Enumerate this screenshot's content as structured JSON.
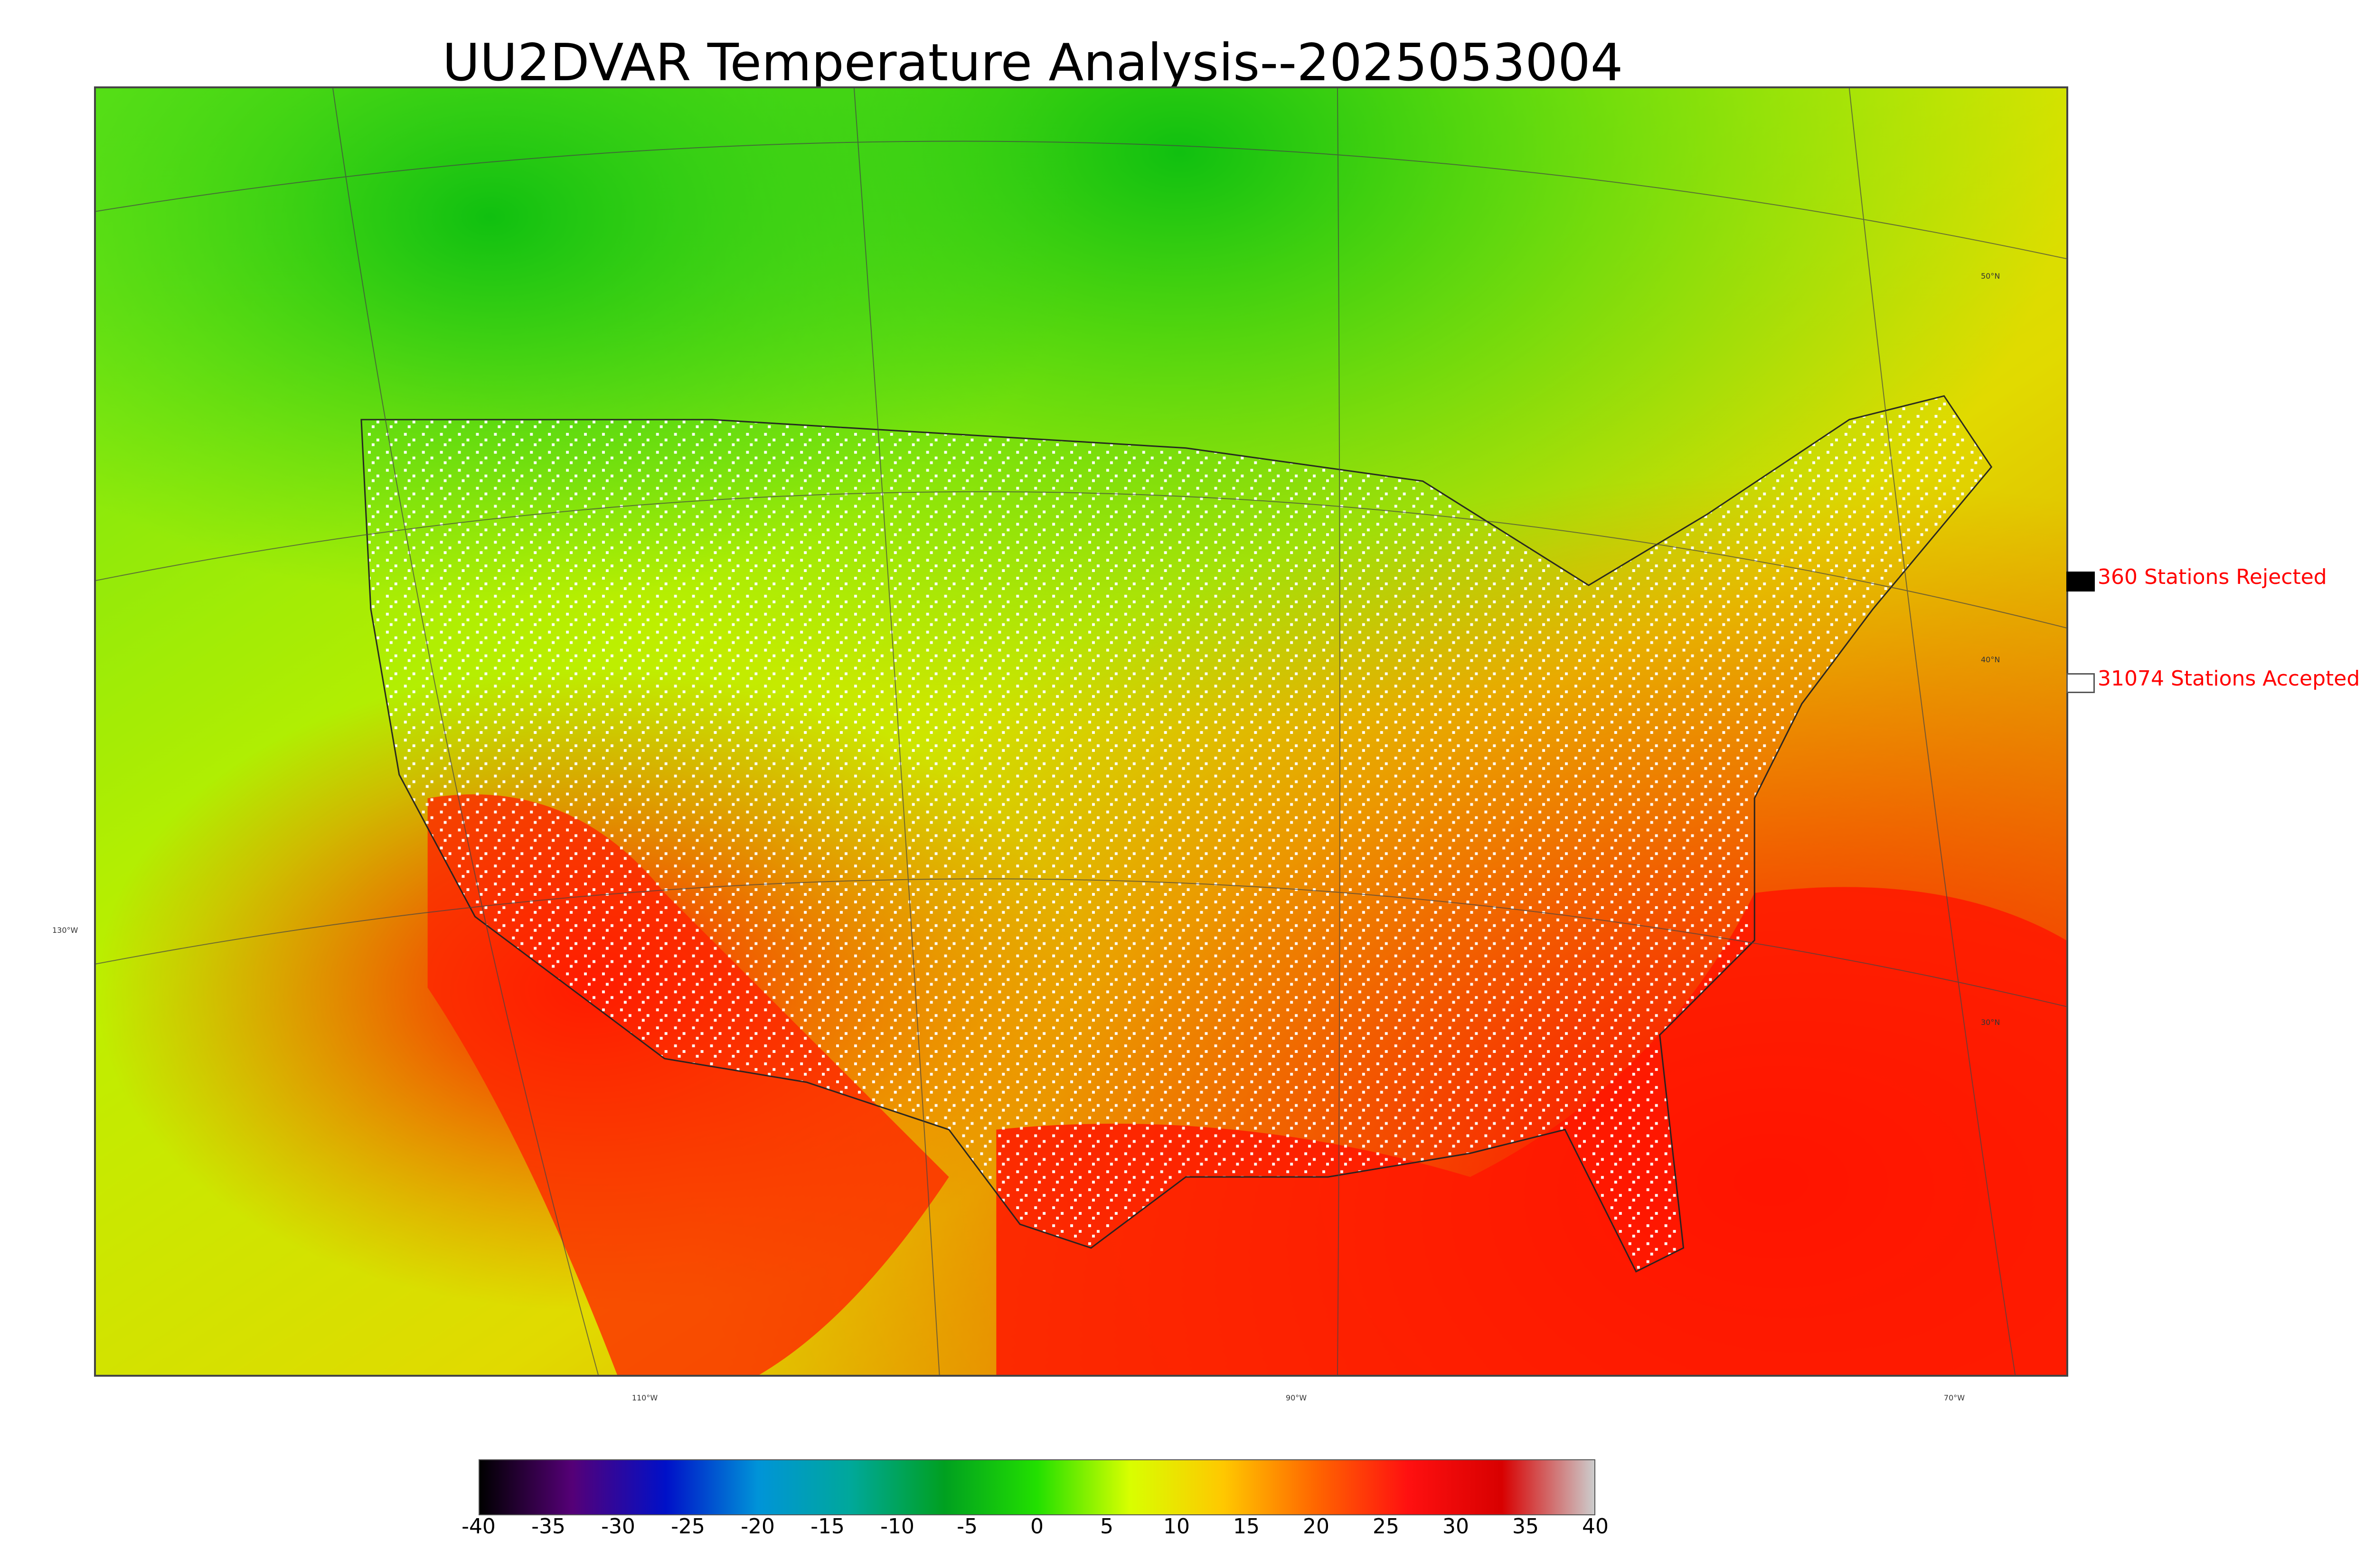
{
  "title": "UU2DVAR Temperature Analysis--2025053004",
  "legend": {
    "rejected": {
      "label": "360 Stations Rejected",
      "color": "#000000"
    },
    "accepted": {
      "label": "31074 Stations Accepted",
      "color": "#ffffff"
    }
  },
  "longitude_labels": [
    "110°W",
    "90°W",
    "70°W"
  ],
  "latitude_labels": {
    "left": "130°W",
    "right": [
      "50°N",
      "40°N",
      "30°N"
    ]
  },
  "colorbar": {
    "ticks": [
      "-40",
      "-35",
      "-30",
      "-25",
      "-20",
      "-15",
      "-10",
      "-5",
      "0",
      "5",
      "10",
      "15",
      "20",
      "25",
      "30",
      "35",
      "40"
    ],
    "range": [
      -40,
      40
    ],
    "colors": [
      "#000000",
      "#550077",
      "#0010c8",
      "#0094d8",
      "#00a89a",
      "#00a020",
      "#22e000",
      "#d8ff00",
      "#ffc800",
      "#ff6600",
      "#ff1010",
      "#d80000",
      "#cccccc"
    ]
  }
}
